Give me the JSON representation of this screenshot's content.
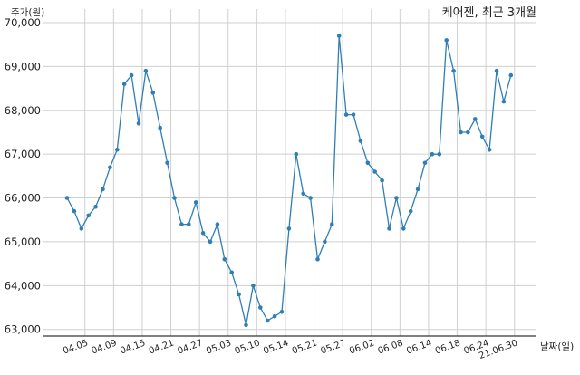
{
  "chart_data": {
    "type": "line",
    "title": "케어젠, 최근 3개월",
    "ylabel": "주가(원)",
    "xlabel": "날짜(일)",
    "ylim": [
      62900,
      70000
    ],
    "y_ticks": [
      "63,000",
      "64,000",
      "65,000",
      "66,000",
      "67,000",
      "68,000",
      "69,000",
      "70,000"
    ],
    "y_tick_values": [
      63000,
      64000,
      65000,
      66000,
      67000,
      68000,
      69000,
      70000
    ],
    "x_ticks": [
      "04.05",
      "04.09",
      "04.15",
      "04.21",
      "04.27",
      "05.03",
      "05.10",
      "05.14",
      "05.21",
      "05.27",
      "06.02",
      "06.08",
      "06.14",
      "06.18",
      "06.24",
      "21.06.30"
    ],
    "x_tick_index": [
      2.5,
      6.5,
      10.5,
      14.5,
      18.5,
      22.5,
      26.5,
      30.5,
      34.5,
      38.5,
      42.5,
      46.5,
      50.5,
      54.5,
      58.5,
      62.5
    ],
    "grid": true,
    "line_color": "#2f7fb5",
    "series": [
      {
        "values": [
          66000,
          65700,
          65300,
          65600,
          65800,
          66200,
          66700,
          67100,
          68600,
          68800,
          67700,
          68900,
          68400,
          67600,
          66800,
          66000,
          65400,
          65400,
          65900,
          65200,
          65000,
          65400,
          64600,
          64300,
          63800,
          63100,
          64000,
          63500,
          63200,
          63300,
          63400,
          65300,
          67000,
          66100,
          66000,
          64600,
          65000,
          65400,
          69700,
          67900,
          67900,
          67300,
          66800,
          66600,
          66400,
          65300,
          66000,
          65300,
          65700,
          66200,
          66800,
          67000,
          67000,
          69600,
          68900,
          67500,
          67500,
          67800,
          67400,
          67100,
          68900,
          68200,
          68800
        ]
      }
    ]
  }
}
